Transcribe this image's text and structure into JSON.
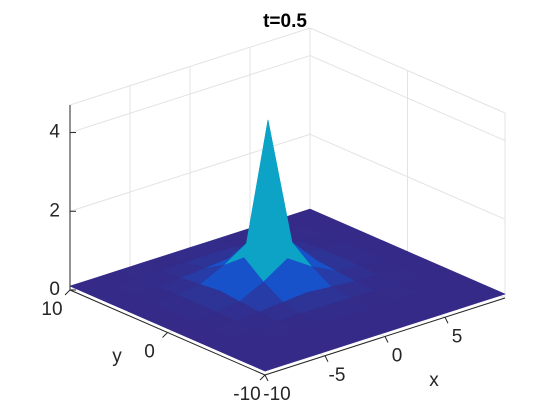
{
  "chart_data": {
    "type": "mesh",
    "title": "t=0.5",
    "x_label": "x",
    "y_label": "y",
    "x": [
      -10,
      -8,
      -6,
      -4,
      -2,
      0,
      2,
      4,
      6,
      8,
      10
    ],
    "y": [
      -10,
      -8,
      -6,
      -4,
      -2,
      0,
      2,
      4,
      6,
      8,
      10
    ],
    "z": [
      [
        0.1,
        0.1,
        0.1,
        0.1,
        0.1,
        0.1,
        0.1,
        0.1,
        0.1,
        0.1,
        0.1
      ],
      [
        0.1,
        0.1,
        0.1,
        0.1,
        0.1,
        0.1,
        0.1,
        0.1,
        0.1,
        0.1,
        0.1
      ],
      [
        0.1,
        0.1,
        0.1,
        0.1,
        0.1,
        0.1,
        0.1,
        0.1,
        0.1,
        0.1,
        0.1
      ],
      [
        0.1,
        0.1,
        0.1,
        0.12,
        0.13,
        0.14,
        0.13,
        0.12,
        0.1,
        0.1,
        0.1
      ],
      [
        0.1,
        0.1,
        0.12,
        0.15,
        0.2,
        0.25,
        0.2,
        0.15,
        0.12,
        0.1,
        0.1
      ],
      [
        0.1,
        0.1,
        0.13,
        0.2,
        0.5,
        0.9,
        0.5,
        0.2,
        0.13,
        0.1,
        0.1
      ],
      [
        0.1,
        0.1,
        0.14,
        0.25,
        0.9,
        4.2,
        0.9,
        0.25,
        0.14,
        0.1,
        0.1
      ],
      [
        0.1,
        0.1,
        0.13,
        0.2,
        0.5,
        0.9,
        0.5,
        0.2,
        0.13,
        0.1,
        0.1
      ],
      [
        0.1,
        0.1,
        0.12,
        0.15,
        0.2,
        0.25,
        0.2,
        0.15,
        0.12,
        0.1,
        0.1
      ],
      [
        0.1,
        0.1,
        0.1,
        0.12,
        0.13,
        0.14,
        0.13,
        0.12,
        0.1,
        0.1,
        0.1
      ],
      [
        0.1,
        0.1,
        0.1,
        0.1,
        0.1,
        0.1,
        0.1,
        0.1,
        0.1,
        0.1,
        0.1
      ]
    ],
    "xlim": [
      -10,
      10
    ],
    "ylim": [
      -10,
      10
    ],
    "zlim": [
      0,
      4.7
    ],
    "xticks": [
      -10,
      -5,
      0,
      5
    ],
    "yticks": [
      -10,
      0,
      10
    ],
    "zticks": [
      0,
      2,
      4
    ],
    "grid": true,
    "colormap": "parula"
  }
}
